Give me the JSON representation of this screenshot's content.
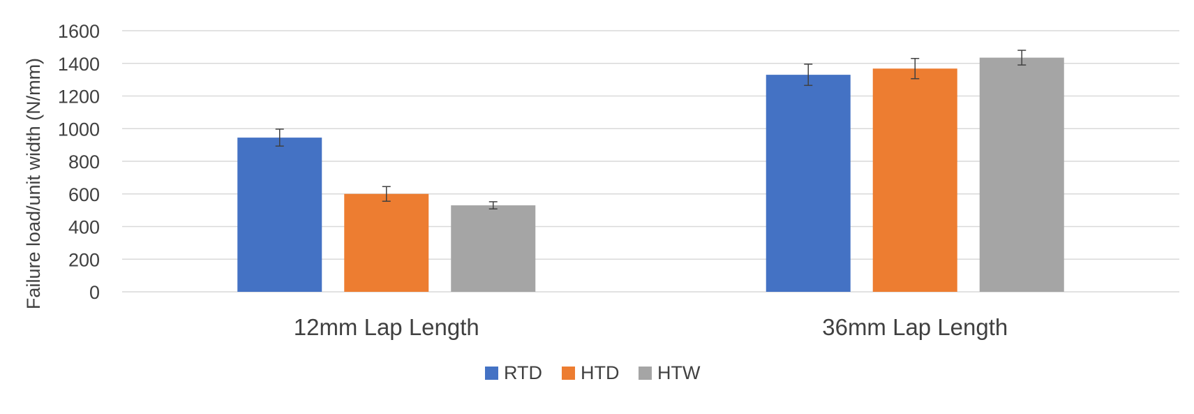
{
  "chart_data": {
    "type": "bar",
    "title": "",
    "xlabel": "",
    "ylabel": "Failure load/unit width (N/mm)",
    "ylim": [
      0,
      1600
    ],
    "yticks": [
      0,
      200,
      400,
      600,
      800,
      1000,
      1200,
      1400,
      1600
    ],
    "categories": [
      "12mm Lap Length",
      "36mm Lap Length"
    ],
    "series": [
      {
        "name": "RTD",
        "color": "#4472C4",
        "values": [
          945,
          1330
        ],
        "errors": [
          52,
          65
        ]
      },
      {
        "name": "HTD",
        "color": "#ED7D31",
        "values": [
          600,
          1368
        ],
        "errors": [
          45,
          62
        ]
      },
      {
        "name": "HTW",
        "color": "#A5A5A5",
        "values": [
          530,
          1435
        ],
        "errors": [
          22,
          45
        ]
      }
    ],
    "grid": true,
    "legend": "bottom"
  }
}
